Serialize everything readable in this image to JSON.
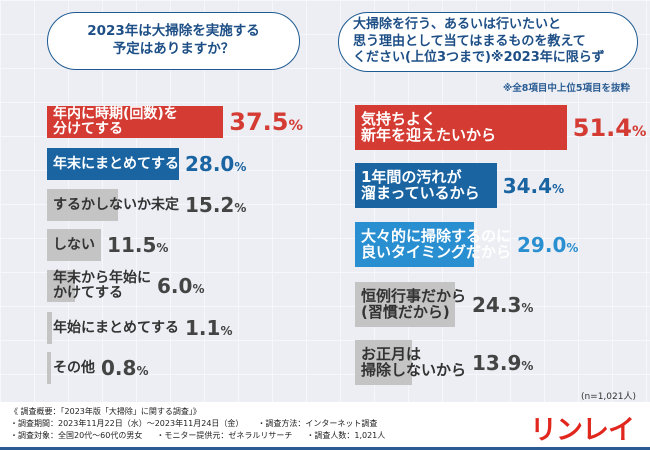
{
  "q1": {
    "title": "2023年は大掃除を実施する\n予定はありますか？",
    "items": [
      {
        "label": "年内に時期(回数)を\n分けてする",
        "value": "37.5",
        "pct": 37.5,
        "color": "#d43b33",
        "text": "#ffffff"
      },
      {
        "label": "年末にまとめてする",
        "value": "28.0",
        "pct": 28.0,
        "color": "#1b64a2",
        "text": "#ffffff"
      },
      {
        "label": "するかしないか未定",
        "value": "15.2",
        "pct": 15.2,
        "color": "#c4c4c4",
        "text": "#333333"
      },
      {
        "label": "しない",
        "value": "11.5",
        "pct": 11.5,
        "color": "#c4c4c4",
        "text": "#333333"
      },
      {
        "label": "年末から年始に\nかけてする",
        "value": "6.0",
        "pct": 6.0,
        "color": "#c4c4c4",
        "text": "#333333"
      },
      {
        "label": "年始にまとめてする",
        "value": "1.1",
        "pct": 1.1,
        "color": "#c4c4c4",
        "text": "#333333"
      },
      {
        "label": "その他",
        "value": "0.8",
        "pct": 0.8,
        "color": "#c4c4c4",
        "text": "#333333"
      }
    ]
  },
  "q2": {
    "title": "大掃除を行う、あるいは行いたいと\n思う理由として当てはまるものを教えて\nください(上位3つまで)※2023年に限らず",
    "note": "※全8項目中上位5項目を抜粋",
    "items": [
      {
        "label": "気持ちよく\n新年を迎えたいから",
        "value": "51.4",
        "pct": 51.4,
        "color": "#d43b33",
        "text": "#ffffff"
      },
      {
        "label": "1年間の汚れが\n溜まっているから",
        "value": "34.4",
        "pct": 34.4,
        "color": "#1b64a2",
        "text": "#ffffff"
      },
      {
        "label": "大々的に掃除するのに\n良いタイミングだから",
        "value": "29.0",
        "pct": 29.0,
        "color": "#2a8fd0",
        "text": "#ffffff"
      },
      {
        "label": "恒例行事だから\n(習慣だから)",
        "value": "24.3",
        "pct": 24.3,
        "color": "#c4c4c4",
        "text": "#333333"
      },
      {
        "label": "お正月は\n掃除しないから",
        "value": "13.9",
        "pct": 13.9,
        "color": "#c4c4c4",
        "text": "#333333"
      }
    ]
  },
  "unit": "%",
  "sample": "(n=1,021人)",
  "footer": {
    "summary": "《 調査概要：「2023年版「大掃除」に関する調査」》",
    "period": "・調査期間：2023年11月22日（水）～2023年11月24日（金）",
    "target": "・調査対象：全国20代～60代の男女",
    "method": "・調査方法：インターネット調査",
    "provider": "・モニター提供元：ゼネラルリサーチ",
    "count": "・調査人数：1,021人",
    "logo": "リンレイ"
  }
}
